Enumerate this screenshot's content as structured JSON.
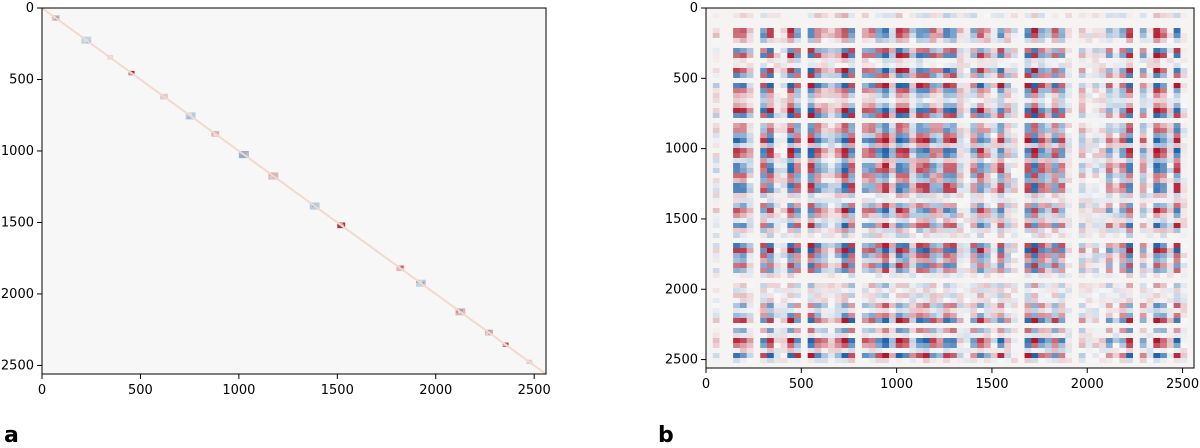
{
  "chart_data": [
    {
      "type": "heatmap",
      "panel_label": "a",
      "structure": "block-diagonal",
      "xlim": [
        0,
        2560
      ],
      "ylim": [
        2560,
        0
      ],
      "xticks": [
        0,
        500,
        1000,
        1500,
        2000,
        2500
      ],
      "yticks": [
        0,
        500,
        1000,
        1500,
        2000,
        2500
      ],
      "xtick_labels": [
        "0",
        "500",
        "1000",
        "1500",
        "2000",
        "2500"
      ],
      "ytick_labels": [
        "0",
        "500",
        "1000",
        "1500",
        "2000",
        "2500"
      ],
      "background_value": 0,
      "diagonal_blocks": [
        {
          "start": 50,
          "size": 40,
          "value": 0.25
        },
        {
          "start": 200,
          "size": 50,
          "value": -0.25
        },
        {
          "start": 330,
          "size": 30,
          "value": 0.2
        },
        {
          "start": 440,
          "size": 30,
          "value": 0.95
        },
        {
          "start": 600,
          "size": 40,
          "value": 0.2
        },
        {
          "start": 730,
          "size": 50,
          "value": -0.3
        },
        {
          "start": 860,
          "size": 40,
          "value": 0.3
        },
        {
          "start": 1000,
          "size": 50,
          "value": -0.5
        },
        {
          "start": 1150,
          "size": 50,
          "value": 0.3
        },
        {
          "start": 1360,
          "size": 50,
          "value": -0.3
        },
        {
          "start": 1500,
          "size": 40,
          "value": 0.9
        },
        {
          "start": 1800,
          "size": 40,
          "value": 0.3
        },
        {
          "start": 1900,
          "size": 50,
          "value": -0.25
        },
        {
          "start": 2100,
          "size": 50,
          "value": 0.3
        },
        {
          "start": 2250,
          "size": 40,
          "value": 0.4
        },
        {
          "start": 2340,
          "size": 30,
          "value": 0.8
        },
        {
          "start": 2460,
          "size": 30,
          "value": 0.2
        }
      ],
      "colormap": "RdBu_r",
      "colors": {
        "positive": "#b2182b",
        "neutral": "#f7f7f7",
        "negative": "#2166ac"
      }
    },
    {
      "type": "heatmap",
      "panel_label": "b",
      "structure": "dense",
      "xlim": [
        0,
        2560
      ],
      "ylim": [
        2560,
        0
      ],
      "xticks": [
        0,
        500,
        1000,
        1500,
        2000,
        2500
      ],
      "yticks": [
        0,
        500,
        1000,
        1500,
        2000,
        2500
      ],
      "xtick_labels": [
        "0",
        "500",
        "1000",
        "1500",
        "2000",
        "2500"
      ],
      "ytick_labels": [
        "0",
        "500",
        "1000",
        "1500",
        "2000",
        "2500"
      ],
      "background_value": 0,
      "colormap": "RdBu_r",
      "colors": {
        "positive": "#b2182b",
        "neutral": "#f7f7f7",
        "negative": "#2166ac"
      }
    }
  ]
}
